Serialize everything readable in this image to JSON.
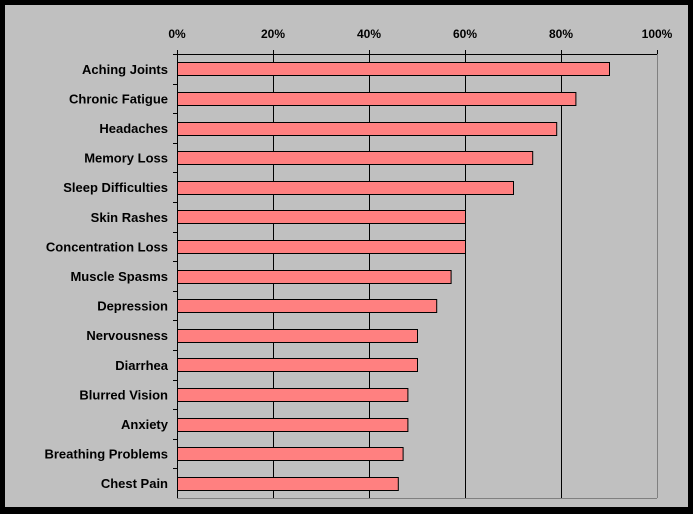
{
  "chart_data": {
    "type": "bar",
    "orientation": "horizontal",
    "title": "",
    "xlabel": "",
    "ylabel": "",
    "categories": [
      "Aching Joints",
      "Chronic Fatigue",
      "Headaches",
      "Memory Loss",
      "Sleep Difficulties",
      "Skin Rashes",
      "Concentration Loss",
      "Muscle Spasms",
      "Depression",
      "Nervousness",
      "Diarrhea",
      "Blurred Vision",
      "Anxiety",
      "Breathing Problems",
      "Chest Pain"
    ],
    "values": [
      90,
      83,
      79,
      74,
      70,
      60,
      60,
      57,
      54,
      50,
      50,
      48,
      48,
      47,
      46
    ],
    "xlim": [
      0,
      100
    ],
    "xticks": [
      "0%",
      "20%",
      "40%",
      "60%",
      "80%",
      "100%"
    ],
    "xtick_values": [
      0,
      20,
      40,
      60,
      80,
      100
    ],
    "x_axis_position": "top",
    "grid": "vertical major gridlines",
    "legend": "none",
    "colors": {
      "bar_fill": "#ff8080",
      "bar_stroke": "#000000",
      "plot_background": "#c0c0c0",
      "page_background": "#000000",
      "gridline": "#000000",
      "text": "#000000"
    }
  }
}
